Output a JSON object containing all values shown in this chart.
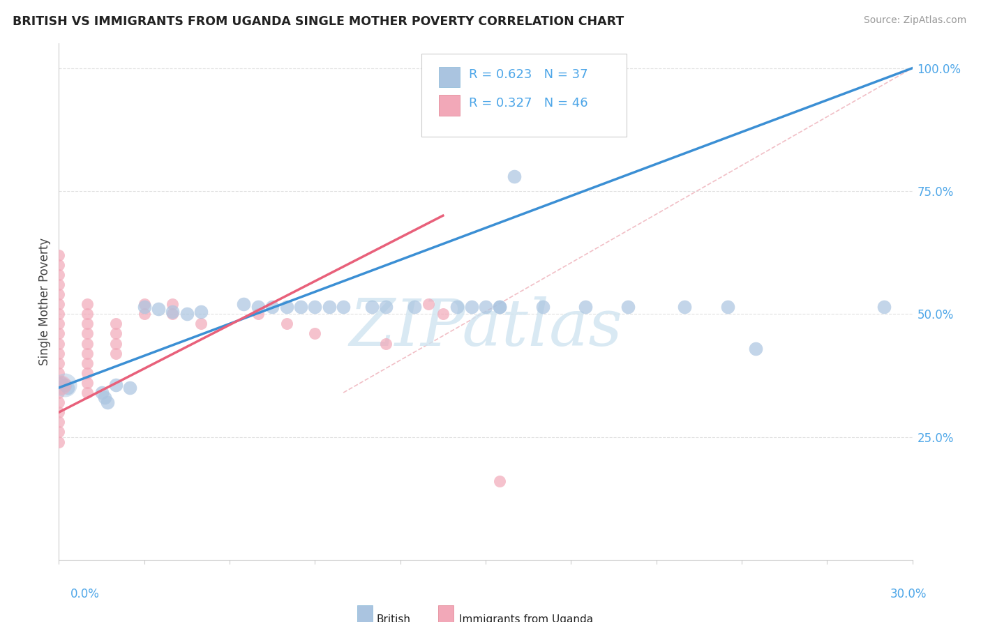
{
  "title": "BRITISH VS IMMIGRANTS FROM UGANDA SINGLE MOTHER POVERTY CORRELATION CHART",
  "source": "Source: ZipAtlas.com",
  "ylabel": "Single Mother Poverty",
  "xlim": [
    0.0,
    0.3
  ],
  "ylim": [
    0.0,
    1.05
  ],
  "blue_R": 0.623,
  "blue_N": 37,
  "pink_R": 0.327,
  "pink_N": 46,
  "blue_color": "#aac4e0",
  "pink_color": "#f2a8b8",
  "blue_line_color": "#3b8fd4",
  "pink_line_color": "#e8607a",
  "ref_line_color": "#f0b8c0",
  "watermark_color": "#d0e4f0",
  "background_color": "#ffffff",
  "grid_color": "#e0e0e0",
  "blue_points": [
    [
      0.001,
      0.36
    ],
    [
      0.002,
      0.355
    ],
    [
      0.003,
      0.35
    ],
    [
      0.015,
      0.34
    ],
    [
      0.016,
      0.33
    ],
    [
      0.017,
      0.32
    ],
    [
      0.02,
      0.355
    ],
    [
      0.025,
      0.35
    ],
    [
      0.03,
      0.515
    ],
    [
      0.035,
      0.51
    ],
    [
      0.04,
      0.505
    ],
    [
      0.045,
      0.5
    ],
    [
      0.05,
      0.505
    ],
    [
      0.065,
      0.52
    ],
    [
      0.07,
      0.515
    ],
    [
      0.075,
      0.515
    ],
    [
      0.08,
      0.515
    ],
    [
      0.085,
      0.515
    ],
    [
      0.09,
      0.515
    ],
    [
      0.095,
      0.515
    ],
    [
      0.1,
      0.515
    ],
    [
      0.11,
      0.515
    ],
    [
      0.115,
      0.515
    ],
    [
      0.125,
      0.515
    ],
    [
      0.14,
      0.515
    ],
    [
      0.145,
      0.515
    ],
    [
      0.15,
      0.515
    ],
    [
      0.155,
      0.515
    ],
    [
      0.155,
      0.515
    ],
    [
      0.16,
      0.78
    ],
    [
      0.17,
      0.515
    ],
    [
      0.185,
      0.515
    ],
    [
      0.2,
      0.515
    ],
    [
      0.22,
      0.515
    ],
    [
      0.235,
      0.515
    ],
    [
      0.245,
      0.43
    ],
    [
      0.29,
      0.515
    ]
  ],
  "pink_points": [
    [
      0.0,
      0.62
    ],
    [
      0.0,
      0.6
    ],
    [
      0.0,
      0.58
    ],
    [
      0.0,
      0.56
    ],
    [
      0.0,
      0.54
    ],
    [
      0.0,
      0.52
    ],
    [
      0.0,
      0.5
    ],
    [
      0.0,
      0.48
    ],
    [
      0.0,
      0.46
    ],
    [
      0.0,
      0.44
    ],
    [
      0.0,
      0.42
    ],
    [
      0.0,
      0.4
    ],
    [
      0.0,
      0.38
    ],
    [
      0.0,
      0.36
    ],
    [
      0.0,
      0.34
    ],
    [
      0.0,
      0.32
    ],
    [
      0.0,
      0.3
    ],
    [
      0.0,
      0.28
    ],
    [
      0.0,
      0.26
    ],
    [
      0.0,
      0.24
    ],
    [
      0.01,
      0.52
    ],
    [
      0.01,
      0.5
    ],
    [
      0.01,
      0.48
    ],
    [
      0.01,
      0.46
    ],
    [
      0.01,
      0.44
    ],
    [
      0.01,
      0.42
    ],
    [
      0.01,
      0.4
    ],
    [
      0.01,
      0.38
    ],
    [
      0.01,
      0.36
    ],
    [
      0.01,
      0.34
    ],
    [
      0.02,
      0.48
    ],
    [
      0.02,
      0.46
    ],
    [
      0.02,
      0.44
    ],
    [
      0.02,
      0.42
    ],
    [
      0.03,
      0.52
    ],
    [
      0.03,
      0.5
    ],
    [
      0.04,
      0.52
    ],
    [
      0.04,
      0.5
    ],
    [
      0.05,
      0.48
    ],
    [
      0.07,
      0.5
    ],
    [
      0.08,
      0.48
    ],
    [
      0.09,
      0.46
    ],
    [
      0.115,
      0.44
    ],
    [
      0.13,
      0.52
    ],
    [
      0.135,
      0.5
    ],
    [
      0.155,
      0.16
    ]
  ],
  "blue_line": [
    [
      0.0,
      0.35
    ],
    [
      0.3,
      1.0
    ]
  ],
  "pink_line": [
    [
      0.0,
      0.3
    ],
    [
      0.135,
      0.7
    ]
  ],
  "ref_line": [
    [
      0.1,
      0.34
    ],
    [
      0.3,
      1.0
    ]
  ]
}
